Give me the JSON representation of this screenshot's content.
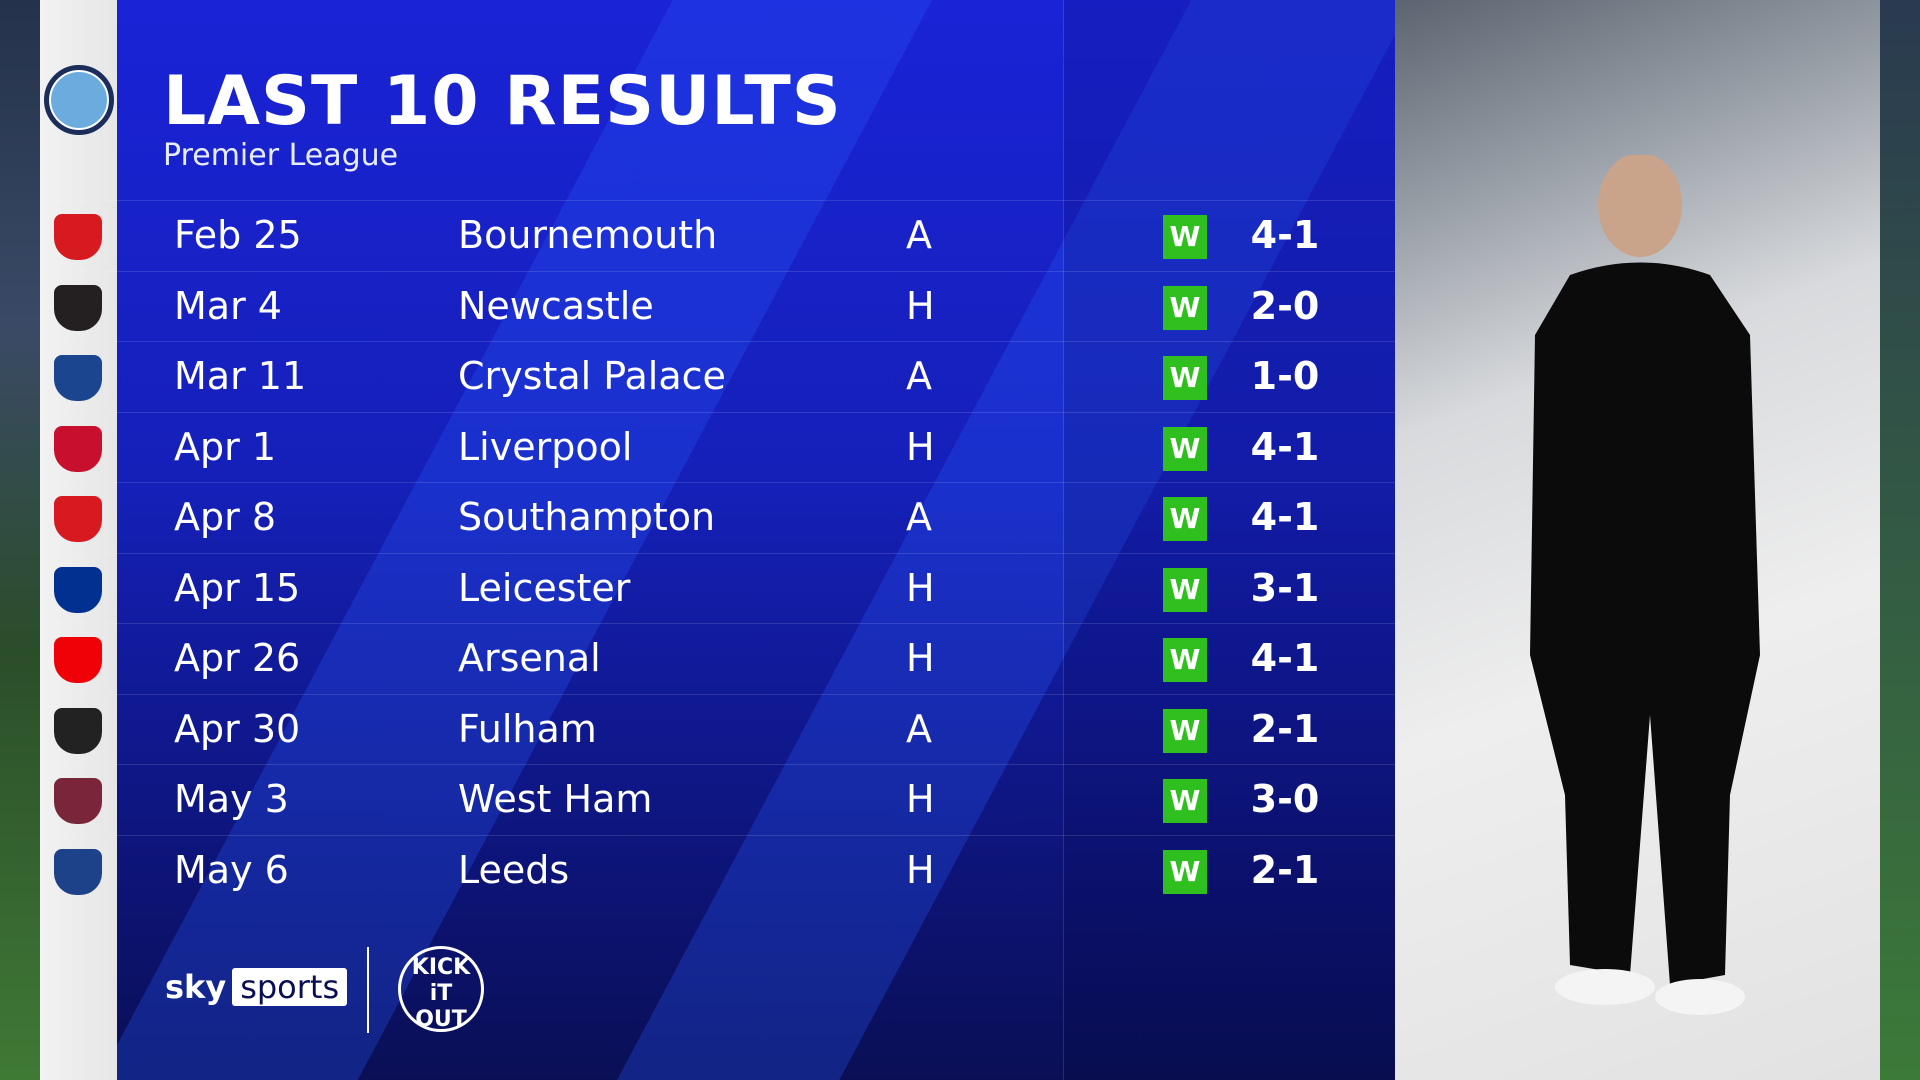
{
  "header": {
    "title": "LAST 10 RESULTS",
    "subtitle": "Premier League"
  },
  "team_badge": "manchester-city-badge",
  "colors": {
    "panel": "#1520b8",
    "win": "#2fbf1e"
  },
  "results": [
    {
      "date": "Feb 25",
      "opponent": "Bournemouth",
      "venue": "A",
      "result": "W",
      "score": "4-1",
      "badge_color": "#d71920"
    },
    {
      "date": "Mar 4",
      "opponent": "Newcastle",
      "venue": "H",
      "result": "W",
      "score": "2-0",
      "badge_color": "#241f20"
    },
    {
      "date": "Mar 11",
      "opponent": "Crystal Palace",
      "venue": "A",
      "result": "W",
      "score": "1-0",
      "badge_color": "#1b458f"
    },
    {
      "date": "Apr 1",
      "opponent": "Liverpool",
      "venue": "H",
      "result": "W",
      "score": "4-1",
      "badge_color": "#c8102e"
    },
    {
      "date": "Apr 8",
      "opponent": "Southampton",
      "venue": "A",
      "result": "W",
      "score": "4-1",
      "badge_color": "#d71920"
    },
    {
      "date": "Apr 15",
      "opponent": "Leicester",
      "venue": "H",
      "result": "W",
      "score": "3-1",
      "badge_color": "#003090"
    },
    {
      "date": "Apr 26",
      "opponent": "Arsenal",
      "venue": "H",
      "result": "W",
      "score": "4-1",
      "badge_color": "#ef0107"
    },
    {
      "date": "Apr 30",
      "opponent": "Fulham",
      "venue": "A",
      "result": "W",
      "score": "2-1",
      "badge_color": "#222222"
    },
    {
      "date": "May 3",
      "opponent": "West Ham",
      "venue": "H",
      "result": "W",
      "score": "3-0",
      "badge_color": "#7a263a"
    },
    {
      "date": "May 6",
      "opponent": "Leeds",
      "venue": "H",
      "result": "W",
      "score": "2-1",
      "badge_color": "#1d428a"
    }
  ],
  "footer": {
    "brand_sky": "sky",
    "brand_sports": "sports",
    "partner": "KICK IT OUT"
  }
}
